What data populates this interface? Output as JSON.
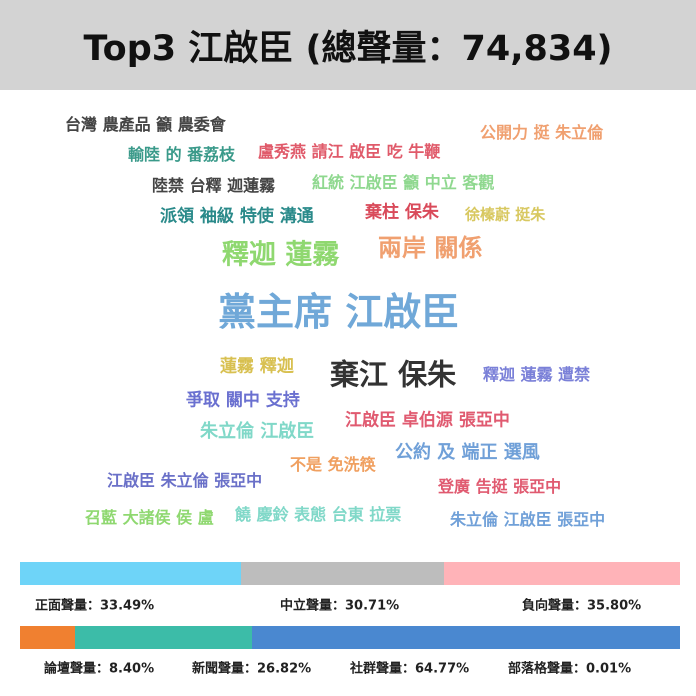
{
  "title": "Top3 江啟臣 (總聲量：74,834)",
  "word_cloud": [
    {
      "text": "台灣 農產品 籲 農委會",
      "color": "#444444"
    },
    {
      "text": "公開力 挺 朱立倫",
      "color": "#f0a070"
    },
    {
      "text": "輸陸 的 番荔枝",
      "color": "#3a9a8a"
    },
    {
      "text": "盧秀燕 請江 啟臣 吃 牛鞭",
      "color": "#e05a6a"
    },
    {
      "text": "陸禁 台釋 迦蓮霧",
      "color": "#444444"
    },
    {
      "text": "紅統 江啟臣 籲 中立 客觀",
      "color": "#8fd88f"
    },
    {
      "text": "派領 袖級 特使 溝通",
      "color": "#2a8a8a"
    },
    {
      "text": "棄柱 保朱",
      "color": "#d94a5a"
    },
    {
      "text": "徐榛蔚 挺朱",
      "color": "#d8c860"
    },
    {
      "text": "釋迦 蓮霧",
      "color": "#8fd870"
    },
    {
      "text": "兩岸 關係",
      "color": "#f0a070"
    },
    {
      "text": "黨主席 江啟臣",
      "color": "#70a8d8"
    },
    {
      "text": "蓮霧 釋迦",
      "color": "#d8c050"
    },
    {
      "text": "棄江 保朱",
      "color": "#333333"
    },
    {
      "text": "釋迦 蓮霧 遭禁",
      "color": "#7a80d8"
    },
    {
      "text": "爭取 關中 支持",
      "color": "#6a70d0"
    },
    {
      "text": "江啟臣 卓伯源 張亞中",
      "color": "#e05a70"
    },
    {
      "text": "朱立倫 江啟臣",
      "color": "#80d8c8"
    },
    {
      "text": "公約 及 端正 選風",
      "color": "#70a0d8"
    },
    {
      "text": "不是 免洗筷",
      "color": "#f0a060"
    },
    {
      "text": "江啟臣 朱立倫 張亞中",
      "color": "#6a70c8"
    },
    {
      "text": "登廣 告挺 張亞中",
      "color": "#e05a70"
    },
    {
      "text": "召藍 大諸侯 侯 盧",
      "color": "#8fd870"
    },
    {
      "text": "饒 慶鈴 表態 台東 拉票",
      "color": "#80d8c8"
    },
    {
      "text": "朱立倫 江啟臣 張亞中",
      "color": "#70a0d8"
    }
  ],
  "sentiment": [
    {
      "label": "正面聲量：33.49%",
      "percent": 33.49,
      "color": "#6ed4f8"
    },
    {
      "label": "中立聲量：30.71%",
      "percent": 30.71,
      "color": "#bdbdbd"
    },
    {
      "label": "負向聲量：35.80%",
      "percent": 35.8,
      "color": "#ffb3b8"
    }
  ],
  "sources": [
    {
      "label": "論壇聲量：8.40%",
      "percent": 8.4,
      "color": "#f08030"
    },
    {
      "label": "新聞聲量：26.82%",
      "percent": 26.82,
      "color": "#3cbca8"
    },
    {
      "label": "社群聲量：64.77%",
      "percent": 64.77,
      "color": "#4a88d0"
    },
    {
      "label": "部落格聲量：0.01%",
      "percent": 0.01,
      "color": "#9060c0"
    }
  ]
}
